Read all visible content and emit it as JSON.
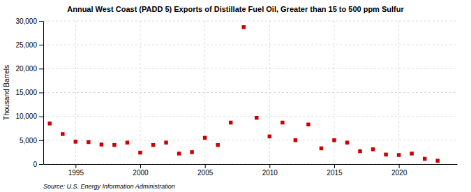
{
  "chart_data": {
    "type": "scatter",
    "title": "Annual West Coast (PADD 5) Exports of Distillate Fuel Oil, Greater than 15 to 500 ppm Sulfur",
    "ylabel": "Thousand Barrels",
    "annotations": [
      "Source: U.S. Energy Information Administration"
    ],
    "x": [
      1993,
      1994,
      1995,
      1996,
      1997,
      1998,
      1999,
      2000,
      2001,
      2002,
      2003,
      2004,
      2005,
      2006,
      2007,
      2008,
      2009,
      2010,
      2011,
      2012,
      2013,
      2014,
      2015,
      2016,
      2017,
      2018,
      2019,
      2020,
      2021,
      2022,
      2023
    ],
    "values": [
      8500,
      6300,
      4700,
      4600,
      4100,
      4000,
      4500,
      2400,
      4000,
      4500,
      2200,
      2500,
      5500,
      4000,
      8700,
      28700,
      9700,
      5800,
      8700,
      5000,
      8300,
      3300,
      5000,
      4500,
      2700,
      3100,
      2000,
      1900,
      2200,
      1100,
      700
    ],
    "color": "#cc0000",
    "marker": "square",
    "xlim": [
      1992.5,
      2024.5
    ],
    "xticks": [
      1995,
      2000,
      2005,
      2010,
      2015,
      2020
    ],
    "ylim": [
      0,
      30000
    ],
    "yticks": [
      0,
      {
        "value": 5000,
        "label": "5,000"
      },
      {
        "value": 10000,
        "label": "10,000"
      },
      {
        "value": 15000,
        "label": "15,000"
      },
      {
        "value": 20000,
        "label": "20,000"
      },
      {
        "value": 25000,
        "label": "25,000"
      },
      {
        "value": 30000,
        "label": "30,000"
      }
    ],
    "grid": true
  }
}
